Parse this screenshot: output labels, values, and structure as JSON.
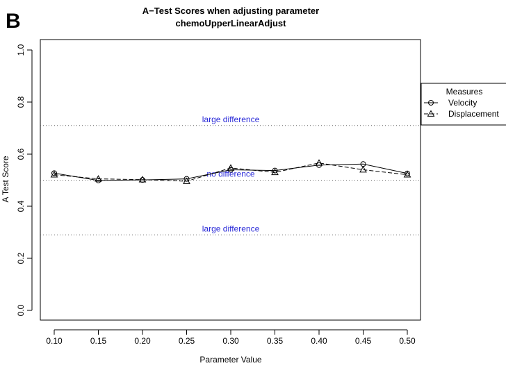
{
  "panel_letter": "B",
  "chart_data": {
    "type": "line",
    "title": "A−Test Scores when adjusting parameter",
    "subtitle": "chemoUpperLinearAdjust",
    "xlabel": "Parameter Value",
    "ylabel": "A Test Score",
    "x": [
      0.1,
      0.15,
      0.2,
      0.25,
      0.3,
      0.35,
      0.4,
      0.45,
      0.5
    ],
    "x_tick_labels": [
      "0.10",
      "0.15",
      "0.20",
      "0.25",
      "0.30",
      "0.35",
      "0.40",
      "0.45",
      "0.50"
    ],
    "ylim": [
      0.0,
      1.0
    ],
    "y_ticks": [
      0.0,
      0.2,
      0.4,
      0.6,
      0.8,
      1.0
    ],
    "y_tick_labels": [
      "0.0",
      "0.2",
      "0.4",
      "0.6",
      "0.8",
      "1.0"
    ],
    "series": [
      {
        "name": "Velocity",
        "marker": "circle",
        "line": "solid",
        "values": [
          0.527,
          0.499,
          0.501,
          0.505,
          0.54,
          0.537,
          0.558,
          0.562,
          0.526
        ]
      },
      {
        "name": "Displacement",
        "marker": "triangle",
        "line": "dashed",
        "values": [
          0.521,
          0.505,
          0.502,
          0.496,
          0.547,
          0.53,
          0.566,
          0.54,
          0.521
        ]
      }
    ],
    "reference_lines": [
      {
        "y": 0.71,
        "label": "large difference"
      },
      {
        "y": 0.5,
        "label": "no difference"
      },
      {
        "y": 0.29,
        "label": "large difference"
      }
    ],
    "legend": {
      "title": "Measures",
      "position": "right"
    },
    "grid": false
  }
}
